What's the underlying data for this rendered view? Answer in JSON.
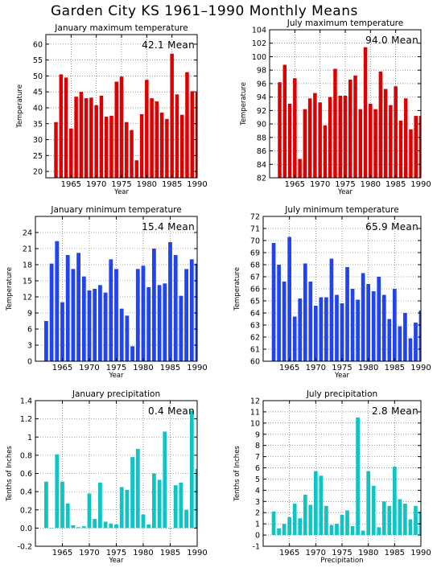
{
  "title": "Garden City KS   1961–1990 Monthly Means",
  "chart_data": [
    {
      "type": "bar",
      "title": "January maximum temperature",
      "ylabel": "Temperature",
      "xlabel": "Year",
      "mean_label": "42.1 Mean",
      "color": "#dd0000",
      "ylim": [
        18,
        63
      ],
      "yticks": [
        20,
        25,
        30,
        35,
        40,
        45,
        50,
        55,
        60
      ],
      "xlim": [
        1960,
        1990
      ],
      "xticks": [
        1965,
        1970,
        1975,
        1980,
        1985,
        1990
      ],
      "x": [
        1962,
        1963,
        1964,
        1965,
        1966,
        1967,
        1968,
        1969,
        1970,
        1971,
        1972,
        1973,
        1974,
        1975,
        1976,
        1977,
        1978,
        1979,
        1980,
        1981,
        1982,
        1983,
        1984,
        1985,
        1986,
        1987,
        1988,
        1989,
        1990
      ],
      "values": [
        35.5,
        50.5,
        49.5,
        33.5,
        43.5,
        45.0,
        43.0,
        43.2,
        40.8,
        43.8,
        37.2,
        37.5,
        48.2,
        49.8,
        35.5,
        33.0,
        23.5,
        38.0,
        48.8,
        43.0,
        42.0,
        38.5,
        36.5,
        57.0,
        44.2,
        37.8,
        51.2,
        45.2,
        44.8
      ]
    },
    {
      "type": "bar",
      "title": "July maximum temperature",
      "ylabel": "Temperature",
      "xlabel": "Year",
      "mean_label": "94.0 Mean",
      "color": "#dd0000",
      "ylim": [
        82,
        104
      ],
      "yticks": [
        82,
        84,
        86,
        88,
        90,
        92,
        94,
        96,
        98,
        100,
        102,
        104
      ],
      "xlim": [
        1960,
        1990
      ],
      "xticks": [
        1965,
        1970,
        1975,
        1980,
        1985,
        1990
      ],
      "x": [
        1962,
        1963,
        1964,
        1965,
        1966,
        1967,
        1968,
        1969,
        1970,
        1971,
        1972,
        1973,
        1974,
        1975,
        1976,
        1977,
        1978,
        1979,
        1980,
        1981,
        1982,
        1983,
        1984,
        1985,
        1986,
        1987,
        1988,
        1989,
        1990
      ],
      "values": [
        96.2,
        98.8,
        93.0,
        96.8,
        84.8,
        92.2,
        93.8,
        94.6,
        93.2,
        89.8,
        94.0,
        98.2,
        94.2,
        94.2,
        96.6,
        97.2,
        92.2,
        101.4,
        93.0,
        92.2,
        97.8,
        95.2,
        92.8,
        95.6,
        90.5,
        93.8,
        89.2,
        91.2,
        91.2
      ]
    },
    {
      "type": "bar",
      "title": "January minimum temperature",
      "ylabel": "Temperature",
      "xlabel": "Year",
      "mean_label": "15.4 Mean",
      "color": "#2244ee",
      "ylim": [
        0,
        27
      ],
      "yticks": [
        0,
        3,
        6,
        9,
        12,
        15,
        18,
        21,
        24
      ],
      "xlim": [
        1960,
        1990
      ],
      "xticks": [
        1965,
        1970,
        1975,
        1980,
        1985,
        1990
      ],
      "x": [
        1962,
        1963,
        1964,
        1965,
        1966,
        1967,
        1968,
        1969,
        1970,
        1971,
        1972,
        1973,
        1974,
        1975,
        1976,
        1977,
        1978,
        1979,
        1980,
        1981,
        1982,
        1983,
        1984,
        1985,
        1986,
        1987,
        1988,
        1989,
        1990
      ],
      "values": [
        7.5,
        18.2,
        22.4,
        11.0,
        19.8,
        17.2,
        20.2,
        15.8,
        13.2,
        13.5,
        14.2,
        12.8,
        19.0,
        17.2,
        9.8,
        8.5,
        2.8,
        17.2,
        17.8,
        13.8,
        21.0,
        14.2,
        14.5,
        22.2,
        19.8,
        12.2,
        17.2,
        19.0,
        18.2
      ]
    },
    {
      "type": "bar",
      "title": "July minimum temperature",
      "ylabel": "Temperature",
      "xlabel": "Year",
      "mean_label": "65.9 Mean",
      "color": "#2244ee",
      "ylim": [
        60,
        72
      ],
      "yticks": [
        60,
        61,
        62,
        63,
        64,
        65,
        66,
        67,
        68,
        69,
        70,
        71,
        72
      ],
      "xlim": [
        1960,
        1990
      ],
      "xticks": [
        1965,
        1970,
        1975,
        1980,
        1985,
        1990
      ],
      "x": [
        1962,
        1963,
        1964,
        1965,
        1966,
        1967,
        1968,
        1969,
        1970,
        1971,
        1972,
        1973,
        1974,
        1975,
        1976,
        1977,
        1978,
        1979,
        1980,
        1981,
        1982,
        1983,
        1984,
        1985,
        1986,
        1987,
        1988,
        1989,
        1990
      ],
      "values": [
        69.8,
        68.0,
        66.6,
        70.3,
        63.7,
        65.2,
        68.1,
        66.6,
        64.6,
        65.3,
        65.3,
        68.5,
        65.5,
        64.8,
        67.8,
        66.0,
        65.1,
        67.3,
        66.4,
        65.8,
        67.0,
        65.5,
        63.5,
        66.0,
        62.9,
        64.0,
        61.9,
        63.2,
        64.2
      ]
    },
    {
      "type": "bar",
      "title": "January precipitation",
      "ylabel": "Tenths of Inches",
      "xlabel": "Year",
      "mean_label": "0.4 Mean",
      "color": "#11c4c4",
      "ylim": [
        -0.2,
        1.4
      ],
      "yticks": [
        -0.2,
        0,
        0.2,
        0.4,
        0.6,
        0.8,
        1.0,
        1.2,
        1.4
      ],
      "xlim": [
        1960,
        1990
      ],
      "xticks": [
        1965,
        1970,
        1975,
        1980,
        1985,
        1990
      ],
      "x": [
        1962,
        1963,
        1964,
        1965,
        1966,
        1967,
        1968,
        1969,
        1970,
        1971,
        1972,
        1973,
        1974,
        1975,
        1976,
        1977,
        1978,
        1979,
        1980,
        1981,
        1982,
        1983,
        1984,
        1985,
        1986,
        1987,
        1988,
        1989,
        1990
      ],
      "values": [
        0.51,
        0.0,
        0.81,
        0.51,
        0.27,
        0.03,
        0.01,
        0.02,
        0.38,
        0.1,
        0.5,
        0.07,
        0.05,
        0.04,
        0.45,
        0.42,
        0.78,
        0.87,
        0.15,
        0.04,
        0.6,
        0.53,
        1.06,
        0.0,
        0.47,
        0.5,
        0.2,
        1.29,
        0.65
      ]
    },
    {
      "type": "bar",
      "title": "July precipitation",
      "ylabel": "Tenths of Inches",
      "xlabel": "Precipitation",
      "mean_label": "2.8 Mean",
      "color": "#11c4c4",
      "ylim": [
        -1,
        12
      ],
      "yticks": [
        -1,
        0,
        1,
        2,
        3,
        4,
        5,
        6,
        7,
        8,
        9,
        10,
        11,
        12
      ],
      "xlim": [
        1960,
        1990
      ],
      "xticks": [
        1965,
        1970,
        1975,
        1980,
        1985,
        1990
      ],
      "x": [
        1962,
        1963,
        1964,
        1965,
        1966,
        1967,
        1968,
        1969,
        1970,
        1971,
        1972,
        1973,
        1974,
        1975,
        1976,
        1977,
        1978,
        1979,
        1980,
        1981,
        1982,
        1983,
        1984,
        1985,
        1986,
        1987,
        1988,
        1989,
        1990
      ],
      "values": [
        2.1,
        0.6,
        1.0,
        1.6,
        2.8,
        1.5,
        3.6,
        2.7,
        5.7,
        5.3,
        2.6,
        0.9,
        1.0,
        1.8,
        2.2,
        0.8,
        10.5,
        0.4,
        5.7,
        4.4,
        0.7,
        3.0,
        2.6,
        6.1,
        3.2,
        2.8,
        1.4,
        2.6,
        2.1
      ]
    }
  ]
}
